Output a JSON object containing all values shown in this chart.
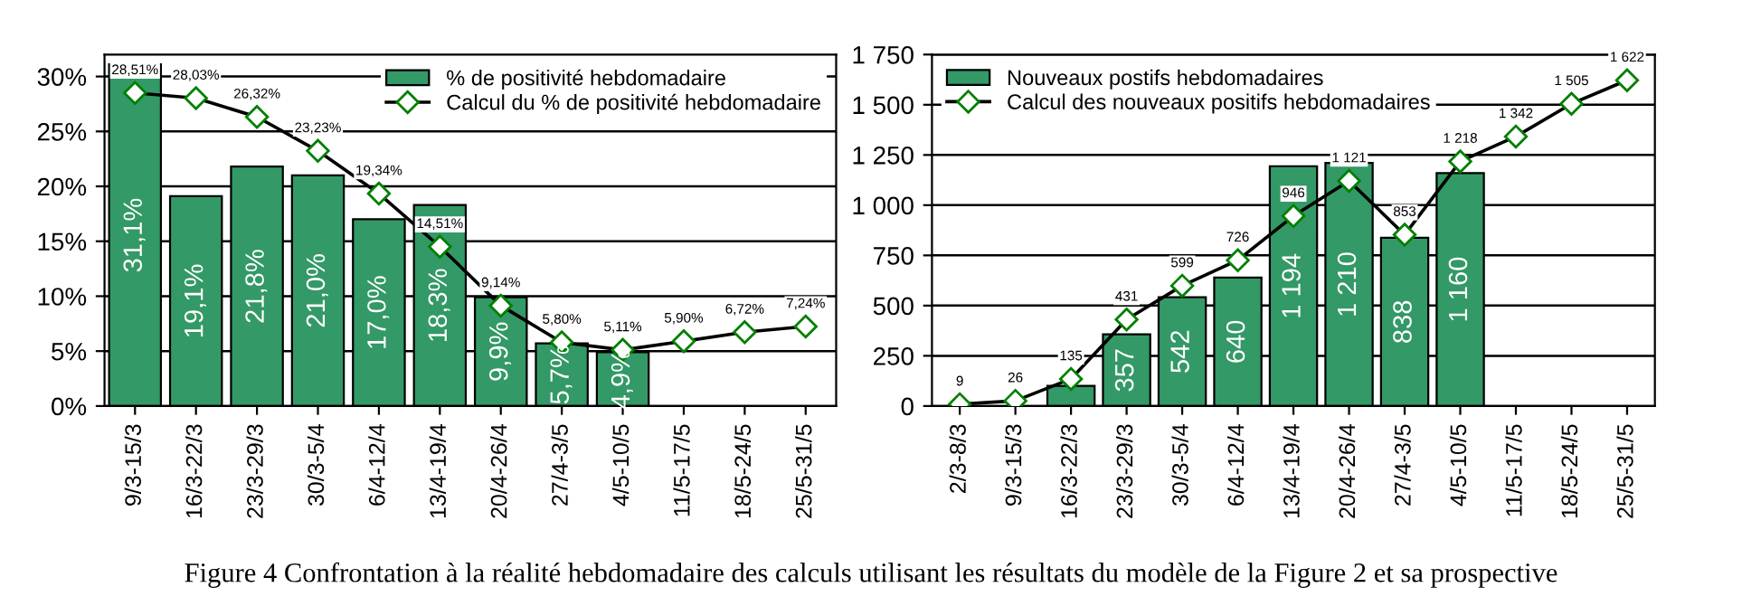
{
  "chart_data": [
    {
      "type": "bar",
      "categories": [
        "9/3-15/3",
        "16/3-22/3",
        "23/3-29/3",
        "30/3-5/4",
        "6/4-12/4",
        "13/4-19/4",
        "20/4-26/4",
        "27/4-3/5",
        "4/5-10/5",
        "11/5-17/5",
        "18/5-24/5",
        "25/5-31/5"
      ],
      "series": [
        {
          "name": "% de positivité hebdomadaire",
          "color": "#339966",
          "values": [
            31.1,
            19.1,
            21.8,
            21.0,
            17.0,
            18.3,
            9.9,
            5.7,
            4.9,
            null,
            null,
            null
          ],
          "value_labels": [
            "31,1%",
            "19,1%",
            "21,8%",
            "21,0%",
            "17,0%",
            "18,3%",
            "9,9%",
            "5,7%",
            "4,9%",
            null,
            null,
            null
          ]
        },
        {
          "name": "Calcul du % de positivité hebdomadaire",
          "type": "line",
          "color": "#000000",
          "marker": "diamond",
          "values": [
            28.51,
            28.03,
            26.32,
            23.23,
            19.34,
            14.51,
            9.14,
            5.8,
            5.11,
            5.9,
            6.72,
            7.24
          ],
          "value_labels": [
            "28,51%",
            "28,03%",
            "26,32%",
            "23,23%",
            "19,34%",
            "14,51%",
            "9,14%",
            "5,80%",
            "5,11%",
            "5,90%",
            "6,72%",
            "7,24%"
          ]
        }
      ],
      "ylim": [
        0,
        32
      ],
      "yticks": [
        {
          "value": 0,
          "label": "0%"
        },
        {
          "value": 5,
          "label": "5%"
        },
        {
          "value": 10,
          "label": "10%"
        },
        {
          "value": 15,
          "label": "15%"
        },
        {
          "value": 20,
          "label": "20%"
        },
        {
          "value": 25,
          "label": "25%"
        },
        {
          "value": 30,
          "label": "30%"
        }
      ],
      "grid": "y",
      "legend": "top right",
      "annotations": [
        "Figure 4 Confrontation à la réalité hebdomadaire des calculs utilisant les résultats du modèle de la Figure 2 et sa prospective"
      ]
    },
    {
      "type": "bar",
      "categories": [
        "2/3-8/3",
        "9/3-15/3",
        "16/3-22/3",
        "23/3-29/3",
        "30/3-5/4",
        "6/4-12/4",
        "13/4-19/4",
        "20/4-26/4",
        "27/4-3/5",
        "4/5-10/5",
        "11/5-17/5",
        "18/5-24/5",
        "25/5-31/5"
      ],
      "series": [
        {
          "name": "Nouveaux postifs hebdomadaires",
          "color": "#339966",
          "values": [
            null,
            null,
            100,
            357,
            542,
            640,
            1194,
            1210,
            838,
            1160,
            null,
            null,
            null
          ],
          "value_labels": [
            null,
            null,
            null,
            "357",
            "542",
            "640",
            "1 194",
            "1 210",
            "838",
            "1 160",
            null,
            null,
            null
          ]
        },
        {
          "name": "Calcul des nouveaux positifs hebdomadaires",
          "type": "line",
          "color": "#000000",
          "marker": "diamond",
          "values": [
            9,
            26,
            135,
            431,
            599,
            726,
            946,
            1121,
            853,
            1218,
            1342,
            1505,
            1622
          ],
          "value_labels": [
            "9",
            "26",
            "135",
            "431",
            "599",
            "726",
            "946",
            "1 121",
            "853",
            "1 218",
            "1 342",
            "1 505",
            "1 622"
          ]
        }
      ],
      "ylim": [
        0,
        1750
      ],
      "yticks": [
        0,
        250,
        500,
        750,
        {
          "value": 1000,
          "label": "1 000"
        },
        {
          "value": 1250,
          "label": "1 250"
        },
        {
          "value": 1500,
          "label": "1 500"
        },
        {
          "value": 1750,
          "label": "1 750"
        }
      ],
      "grid": "y",
      "legend": "top left"
    }
  ]
}
